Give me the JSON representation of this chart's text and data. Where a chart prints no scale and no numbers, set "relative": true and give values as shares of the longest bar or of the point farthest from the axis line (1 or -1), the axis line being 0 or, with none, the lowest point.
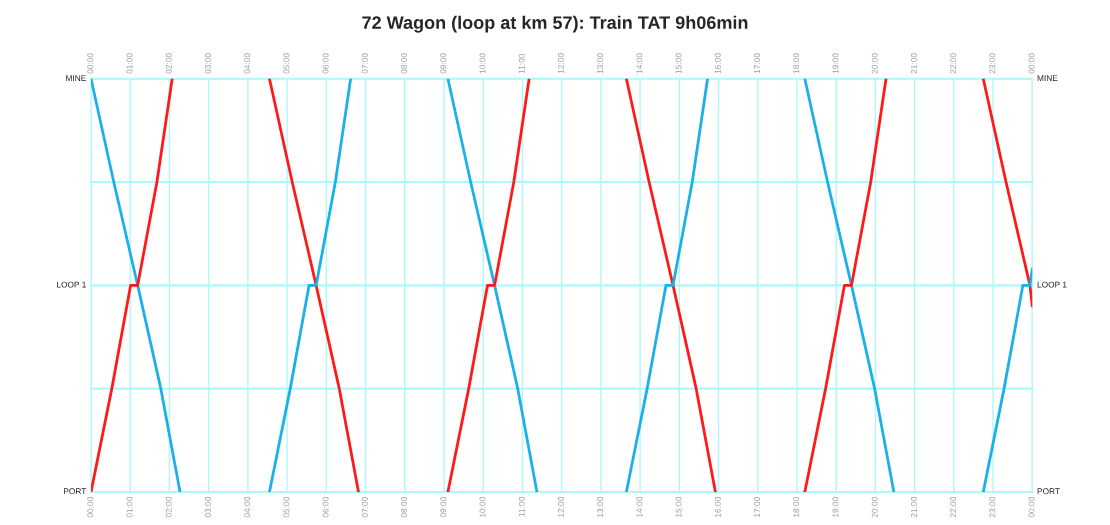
{
  "chart_data": {
    "type": "line",
    "title": "72 Wagon (loop at km 57): Train TAT 9h06min",
    "relative": true,
    "xlim": [
      0,
      24
    ],
    "xticks": [
      {
        "value": 0,
        "label": "00:00"
      },
      {
        "value": 1,
        "label": "01:00"
      },
      {
        "value": 2,
        "label": "02:00"
      },
      {
        "value": 3,
        "label": "03:00"
      },
      {
        "value": 4,
        "label": "04:00"
      },
      {
        "value": 5,
        "label": "05:00"
      },
      {
        "value": 6,
        "label": "06:00"
      },
      {
        "value": 7,
        "label": "07:00"
      },
      {
        "value": 8,
        "label": "08:00"
      },
      {
        "value": 9,
        "label": "09:00"
      },
      {
        "value": 10,
        "label": "10:00"
      },
      {
        "value": 11,
        "label": "11:00"
      },
      {
        "value": 12,
        "label": "12:00"
      },
      {
        "value": 13,
        "label": "13:00"
      },
      {
        "value": 14,
        "label": "14:00"
      },
      {
        "value": 15,
        "label": "15:00"
      },
      {
        "value": 16,
        "label": "16:00"
      },
      {
        "value": 17,
        "label": "17:00"
      },
      {
        "value": 18,
        "label": "18:00"
      },
      {
        "value": 19,
        "label": "19:00"
      },
      {
        "value": 20,
        "label": "20:00"
      },
      {
        "value": 21,
        "label": "21:00"
      },
      {
        "value": 22,
        "label": "22:00"
      },
      {
        "value": 23,
        "label": "23:00"
      },
      {
        "value": 24,
        "label": "00:00"
      }
    ],
    "x2lim": [
      0,
      24
    ],
    "x2ticks": [
      {
        "value": 0,
        "label": "00:00"
      },
      {
        "value": 1,
        "label": "01:00"
      },
      {
        "value": 2,
        "label": "02:00"
      },
      {
        "value": 3,
        "label": "03:00"
      },
      {
        "value": 4,
        "label": "04:00"
      },
      {
        "value": 5,
        "label": "05:00"
      },
      {
        "value": 6,
        "label": "06:00"
      },
      {
        "value": 7,
        "label": "07:00"
      },
      {
        "value": 8,
        "label": "08:00"
      },
      {
        "value": 9,
        "label": "09:00"
      },
      {
        "value": 10,
        "label": "10:00"
      },
      {
        "value": 11,
        "label": "11:00"
      },
      {
        "value": 12,
        "label": "12:00"
      },
      {
        "value": 13,
        "label": "13:00"
      },
      {
        "value": 14,
        "label": "14:00"
      },
      {
        "value": 15,
        "label": "15:00"
      },
      {
        "value": 16,
        "label": "16:00"
      },
      {
        "value": 17,
        "label": "17:00"
      },
      {
        "value": 18,
        "label": "18:00"
      },
      {
        "value": 19,
        "label": "19:00"
      },
      {
        "value": 20,
        "label": "20:00"
      },
      {
        "value": 21,
        "label": "21:00"
      },
      {
        "value": 22,
        "label": "22:00"
      },
      {
        "value": 23,
        "label": "23:00"
      },
      {
        "value": 24,
        "label": "00:00"
      }
    ],
    "grid": "x",
    "ref_lines": [
      {
        "axis": "y",
        "value": 0,
        "label": "PORT"
      },
      {
        "axis": "y",
        "value": 0.25,
        "label": null
      },
      {
        "axis": "y",
        "value": 0.5,
        "label": "LOOP 1"
      },
      {
        "axis": "y",
        "value": 0.75,
        "label": null
      },
      {
        "axis": "y",
        "value": 1,
        "label": "MINE"
      }
    ],
    "line_style": "solid",
    "series": [
      {
        "color": "#1ab0e8",
        "x": [
          0,
          0.58,
          1.19,
          1.78,
          2.27
        ],
        "values": [
          1,
          0.75,
          0.5,
          0.25,
          0
        ]
      },
      {
        "color": "#ff1a1a",
        "x": [
          0,
          0.53,
          1.01,
          1.19,
          1.68,
          2.07
        ],
        "values": [
          0,
          0.25,
          0.5,
          0.5,
          0.75,
          1
        ]
      },
      {
        "color": "#ff1a1a",
        "x": [
          4.55,
          5.13,
          5.74,
          6.33,
          6.82
        ],
        "values": [
          1,
          0.75,
          0.5,
          0.25,
          0
        ]
      },
      {
        "color": "#1ab0e8",
        "x": [
          4.55,
          5.08,
          5.56,
          5.74,
          6.23,
          6.62
        ],
        "values": [
          0,
          0.25,
          0.5,
          0.5,
          0.75,
          1
        ]
      },
      {
        "color": "#1ab0e8",
        "x": [
          9.1,
          9.68,
          10.29,
          10.88,
          11.37
        ],
        "values": [
          1,
          0.75,
          0.5,
          0.25,
          0
        ]
      },
      {
        "color": "#ff1a1a",
        "x": [
          9.1,
          9.63,
          10.11,
          10.29,
          10.78,
          11.17
        ],
        "values": [
          0,
          0.25,
          0.5,
          0.5,
          0.75,
          1
        ]
      },
      {
        "color": "#ff1a1a",
        "x": [
          13.65,
          14.23,
          14.84,
          15.43,
          15.92
        ],
        "values": [
          1,
          0.75,
          0.5,
          0.25,
          0
        ]
      },
      {
        "color": "#1ab0e8",
        "x": [
          13.65,
          14.18,
          14.66,
          14.84,
          15.33,
          15.72
        ],
        "values": [
          0,
          0.25,
          0.5,
          0.5,
          0.75,
          1
        ]
      },
      {
        "color": "#1ab0e8",
        "x": [
          18.2,
          18.78,
          19.39,
          19.98,
          20.47
        ],
        "values": [
          1,
          0.75,
          0.5,
          0.25,
          0
        ]
      },
      {
        "color": "#ff1a1a",
        "x": [
          18.2,
          18.73,
          19.21,
          19.39,
          19.88,
          20.27
        ],
        "values": [
          0,
          0.25,
          0.5,
          0.5,
          0.75,
          1
        ]
      },
      {
        "color": "#ff1a1a",
        "x": [
          22.75,
          23.33,
          23.94,
          24
        ],
        "values": [
          1,
          0.75,
          0.5,
          0.45
        ]
      },
      {
        "color": "#1ab0e8",
        "x": [
          22.75,
          23.28,
          23.76,
          23.94,
          24
        ],
        "values": [
          0,
          0.25,
          0.5,
          0.5,
          0.54
        ]
      }
    ]
  }
}
